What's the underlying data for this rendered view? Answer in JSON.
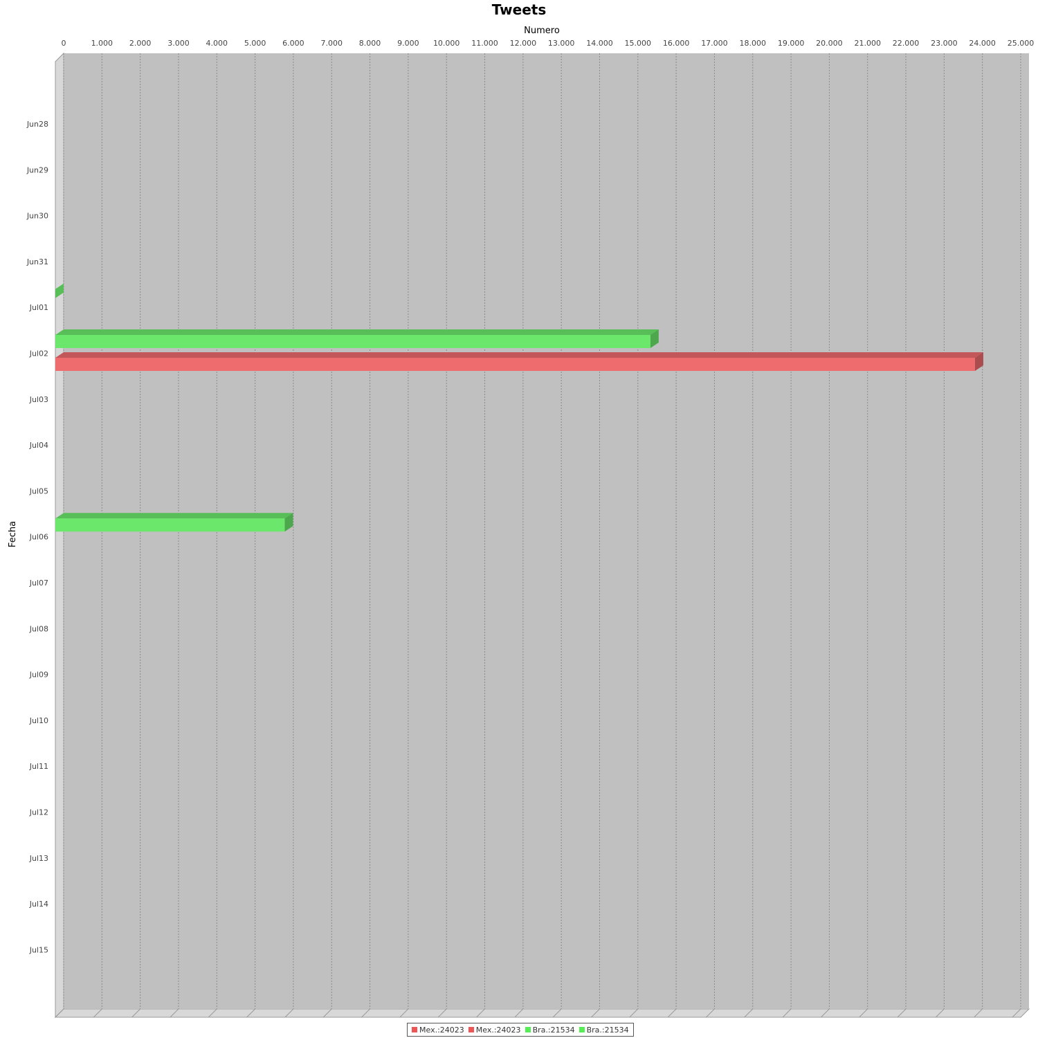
{
  "chart_data": {
    "type": "bar",
    "orientation": "horizontal",
    "title": "Tweets",
    "xlabel": "Numero",
    "ylabel": "Fecha",
    "xlim": [
      0,
      25000
    ],
    "x_ticks": [
      "0",
      "1.000",
      "2.000",
      "3.000",
      "4.000",
      "5.000",
      "6.000",
      "7.000",
      "8.000",
      "9.000",
      "10.000",
      "11.000",
      "12.000",
      "13.000",
      "14.000",
      "15.000",
      "16.000",
      "17.000",
      "18.000",
      "19.000",
      "20.000",
      "21.000",
      "22.000",
      "23.000",
      "24.000",
      "25.000"
    ],
    "categories": [
      "Jun28",
      "Jun29",
      "Jun30",
      "Jun31",
      "Jul01",
      "Jul02",
      "Jul03",
      "Jul04",
      "Jul05",
      "Jul06",
      "Jul07",
      "Jul08",
      "Jul09",
      "Jul10",
      "Jul11",
      "Jul12",
      "Jul13",
      "Jul14",
      "Jul15"
    ],
    "grid": true,
    "legend_position": "bottom",
    "series": [
      {
        "name": "Bra.:21534",
        "color": "#6be86b",
        "values": [
          0,
          0,
          0,
          0,
          0,
          15543,
          0,
          0,
          0,
          5991,
          0,
          0,
          0,
          0,
          0,
          0,
          0,
          0,
          0
        ]
      },
      {
        "name": "Mex.:24023",
        "color": "#ee6b6e",
        "values": [
          0,
          0,
          0,
          0,
          0,
          24023,
          0,
          0,
          0,
          0,
          0,
          0,
          0,
          0,
          0,
          0,
          0,
          0,
          0
        ]
      }
    ],
    "legend": [
      {
        "label": "Mex.:24023",
        "color": "#ee5555"
      },
      {
        "label": "Mex.:24023",
        "color": "#ee5555"
      },
      {
        "label": "Bra.:21534",
        "color": "#55ee55"
      },
      {
        "label": "Bra.:21534",
        "color": "#55ee55"
      }
    ]
  }
}
